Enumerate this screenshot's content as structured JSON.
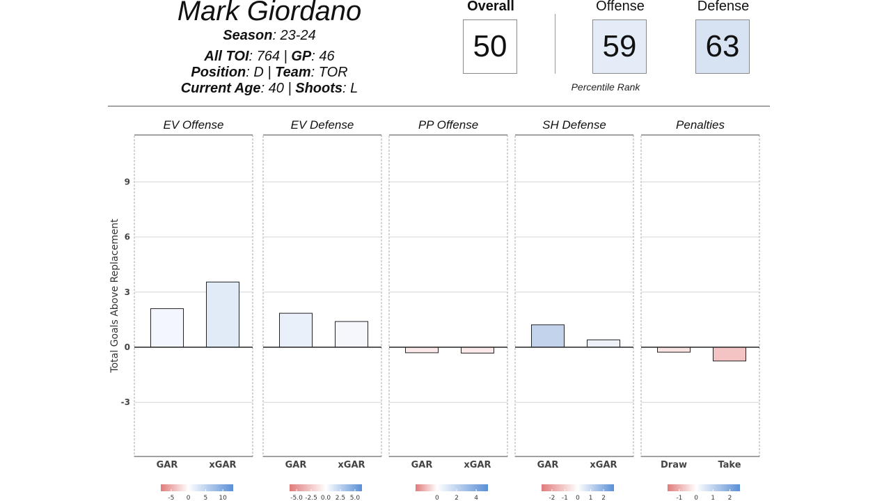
{
  "player": {
    "name": "Mark Giordano",
    "season_label": "Season",
    "season": ": 23-24",
    "toi_label": "All TOI",
    "toi": ": 764 | ",
    "gp_label": "GP",
    "gp": ": 46",
    "position_label": "Position",
    "position": ": D | ",
    "team_label": "Team",
    "team": ": TOR",
    "age_label": "Current Age",
    "age": ": 40 | ",
    "shoots_label": "Shoots",
    "shoots": ": L"
  },
  "ratings": {
    "overall_label": "Overall",
    "overall": "50",
    "overall_color": "#ffffff",
    "offense_label": "Offense",
    "offense": "59",
    "offense_color": "#e4edf7",
    "defense_label": "Defense",
    "defense": "63",
    "defense_color": "#d7e3f3",
    "caption": "Percentile Rank"
  },
  "chart_data": {
    "type": "bar",
    "ylabel": "Total Goals Above Replacement",
    "ylim": [
      -6,
      12
    ],
    "yticks": [
      9,
      6,
      3,
      0,
      -3
    ],
    "grid": true,
    "panels": [
      {
        "title": "EV Offense",
        "categories": [
          "GAR",
          "xGAR"
        ],
        "values": [
          2.1,
          3.55
        ],
        "fills": [
          "#f3f6fc",
          "#e1eaf7"
        ],
        "legend": {
          "ticks": [
            "-5",
            "0",
            "5",
            "10"
          ],
          "tick_values": [
            -5,
            0,
            5,
            10
          ],
          "range": [
            -8,
            13
          ]
        }
      },
      {
        "title": "EV Defense",
        "categories": [
          "GAR",
          "xGAR"
        ],
        "values": [
          1.85,
          1.4
        ],
        "fills": [
          "#eaf0f9",
          "#f5f7fc"
        ],
        "legend": {
          "ticks": [
            "-5.0",
            "-2.5",
            "0.0",
            "2.5",
            "5.0"
          ],
          "tick_values": [
            -5,
            -2.5,
            0,
            2.5,
            5
          ],
          "range": [
            -6.2,
            6.2
          ]
        }
      },
      {
        "title": "PP Offense",
        "categories": [
          "GAR",
          "xGAR"
        ],
        "values": [
          -0.3,
          -0.32
        ],
        "fills": [
          "#fbe9e9",
          "#fbe8e8"
        ],
        "legend": {
          "ticks": [
            "0",
            "2",
            "4"
          ],
          "tick_values": [
            0,
            2,
            4
          ],
          "range": [
            -2.2,
            5.2
          ]
        }
      },
      {
        "title": "SH Defense",
        "categories": [
          "GAR",
          "xGAR"
        ],
        "values": [
          1.22,
          0.4
        ],
        "fills": [
          "#c3d3ec",
          "#edf2f9"
        ],
        "legend": {
          "ticks": [
            "-2",
            "-1",
            "0",
            "1",
            "2"
          ],
          "tick_values": [
            -2,
            -1,
            0,
            1,
            2
          ],
          "range": [
            -2.8,
            2.8
          ]
        }
      },
      {
        "title": "Penalties",
        "categories": [
          "Draw",
          "Take"
        ],
        "values": [
          -0.27,
          -0.75
        ],
        "fills": [
          "#f9e3e3",
          "#f4c4c4"
        ],
        "legend": {
          "ticks": [
            "-1",
            "0",
            "1",
            "2"
          ],
          "tick_values": [
            -1,
            0,
            1,
            2
          ],
          "range": [
            -1.7,
            2.6
          ]
        }
      }
    ]
  }
}
